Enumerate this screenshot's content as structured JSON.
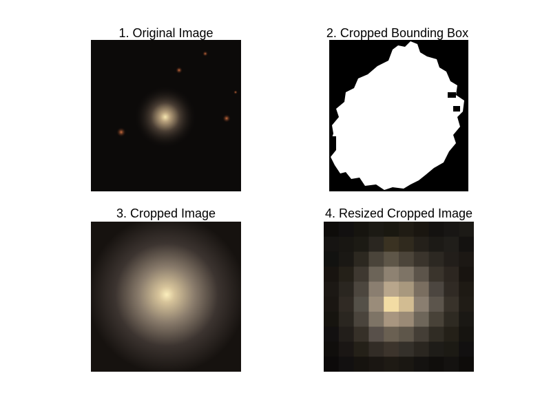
{
  "panels": [
    {
      "title": "1. Original Image"
    },
    {
      "title": "2. Cropped Bounding Box"
    },
    {
      "title": "3. Cropped Image"
    },
    {
      "title": "4. Resized Cropped Image"
    }
  ],
  "colors": {
    "background": "#000000",
    "galaxy_core": "#f2e0a8",
    "galaxy_halo": "#8c7a68",
    "mask": "#ffffff"
  },
  "resized_grid": {
    "rows": 10,
    "cols": 10,
    "pixels": [
      [
        "#0e0c0a",
        "#121010",
        "#16140f",
        "#1c1a14",
        "#1a1810",
        "#201c14",
        "#1a1610",
        "#141210",
        "#181614",
        "#1c1a16"
      ],
      [
        "#161412",
        "#181612",
        "#1c1a14",
        "#2a2620",
        "#3a3222",
        "#302a1e",
        "#24201a",
        "#1c1a16",
        "#201e1a",
        "#141210"
      ],
      [
        "#121210",
        "#1a1814",
        "#2c2820",
        "#4a443a",
        "#5e5648",
        "#4c453a",
        "#3a342c",
        "#2c2822",
        "#221e1a",
        "#1c1814"
      ],
      [
        "#181410",
        "#242018",
        "#3e3830",
        "#6c6458",
        "#8e8272",
        "#7e7466",
        "#5c544a",
        "#3a342c",
        "#2c2620",
        "#181410"
      ],
      [
        "#1c1814",
        "#2a2620",
        "#4c463e",
        "#8a7e70",
        "#b8a68c",
        "#a8987e",
        "#7a6e60",
        "#4c4640",
        "#302a24",
        "#1e1a14"
      ],
      [
        "#1a1612",
        "#302a24",
        "#545048",
        "#9a8c7a",
        "#f2dca4",
        "#d2bc92",
        "#8a7e70",
        "#5c554c",
        "#38322a",
        "#201c16"
      ],
      [
        "#16140f",
        "#2a2620",
        "#4a443c",
        "#7e7466",
        "#a89680",
        "#9a8a76",
        "#6e665a",
        "#484238",
        "#2e2a22",
        "#1a1814"
      ],
      [
        "#121010",
        "#221e1a",
        "#363028",
        "#58504a",
        "#6a6052",
        "#5e564a",
        "#443e36",
        "#302c24",
        "#242018",
        "#161410"
      ],
      [
        "#100e0c",
        "#1a1614",
        "#242018",
        "#322c26",
        "#3c342c",
        "#34302a",
        "#2a2620",
        "#1e1c18",
        "#1c1a14",
        "#121010"
      ],
      [
        "#0c0a0a",
        "#121010",
        "#16130f",
        "#1a1612",
        "#1e1a14",
        "#1a1712",
        "#141210",
        "#100e0c",
        "#141210",
        "#0e0c0a"
      ]
    ]
  }
}
